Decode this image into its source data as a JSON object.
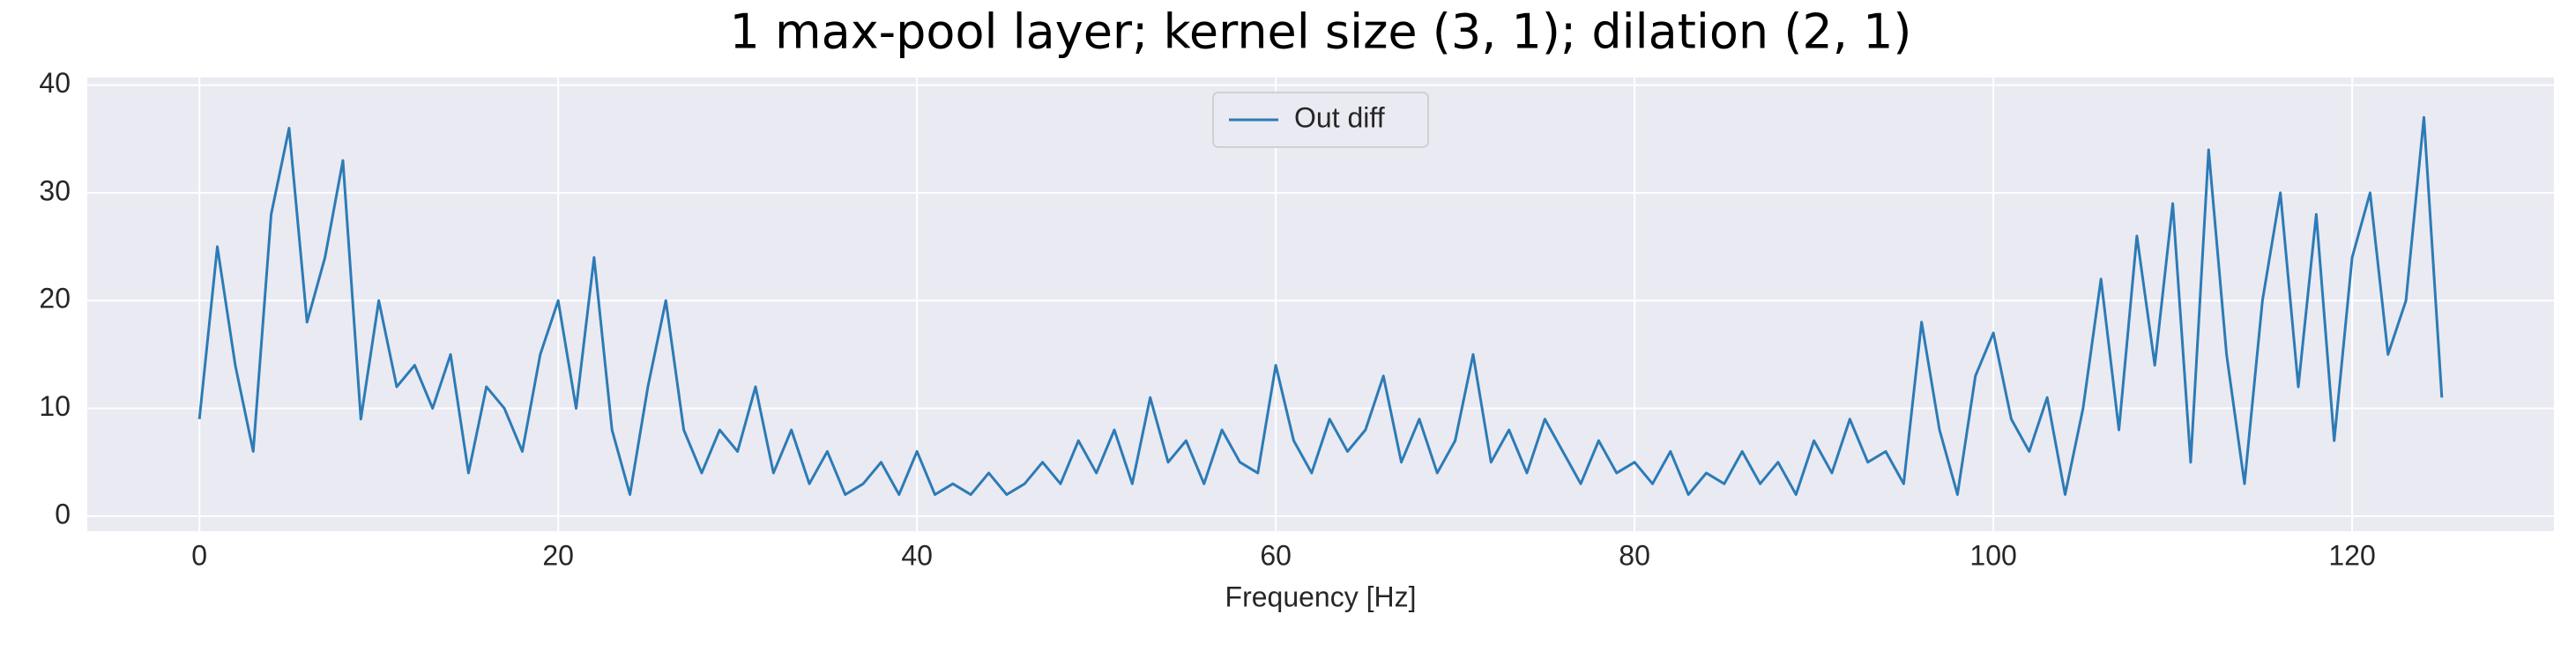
{
  "chart_data": {
    "type": "line",
    "title": "1 max-pool layer; kernel size (3, 1); dilation (2, 1)",
    "x_label": "Frequency [Hz]",
    "x": [
      0,
      1,
      2,
      3,
      4,
      5,
      6,
      7,
      8,
      9,
      10,
      11,
      12,
      13,
      14,
      15,
      16,
      17,
      18,
      19,
      20,
      21,
      22,
      23,
      24,
      25,
      26,
      27,
      28,
      29,
      30,
      31,
      32,
      33,
      34,
      35,
      36,
      37,
      38,
      39,
      40,
      41,
      42,
      43,
      44,
      45,
      46,
      47,
      48,
      49,
      50,
      51,
      52,
      53,
      54,
      55,
      56,
      57,
      58,
      59,
      60,
      61,
      62,
      63,
      64,
      65,
      66,
      67,
      68,
      69,
      70,
      71,
      72,
      73,
      74,
      75,
      76,
      77,
      78,
      79,
      80,
      81,
      82,
      83,
      84,
      85,
      86,
      87,
      88,
      89,
      90,
      91,
      92,
      93,
      94,
      95,
      96,
      97,
      98,
      99,
      100,
      101,
      102,
      103,
      104,
      105,
      106,
      107,
      108,
      109,
      110,
      111,
      112,
      113,
      114,
      115,
      116,
      117,
      118,
      119,
      120,
      121,
      122,
      123,
      124,
      125
    ],
    "series": [
      {
        "name": "Out diff",
        "color": "#2c7bb6",
        "values": [
          9,
          25,
          14,
          6,
          28,
          36,
          18,
          24,
          33,
          9,
          20,
          12,
          14,
          10,
          15,
          4,
          12,
          10,
          6,
          15,
          20,
          10,
          24,
          8,
          2,
          12,
          20,
          8,
          4,
          8,
          6,
          12,
          4,
          8,
          3,
          6,
          2,
          3,
          5,
          2,
          6,
          2,
          3,
          2,
          4,
          2,
          3,
          5,
          3,
          7,
          4,
          8,
          3,
          11,
          5,
          7,
          3,
          8,
          5,
          4,
          14,
          7,
          4,
          9,
          6,
          8,
          13,
          5,
          9,
          4,
          7,
          15,
          5,
          8,
          4,
          9,
          6,
          3,
          7,
          4,
          5,
          3,
          6,
          2,
          4,
          3,
          6,
          3,
          5,
          2,
          7,
          4,
          9,
          5,
          6,
          3,
          18,
          8,
          2,
          13,
          17,
          9,
          6,
          11,
          2,
          10,
          22,
          8,
          26,
          14,
          29,
          5,
          34,
          15,
          3,
          20,
          30,
          12,
          28,
          7,
          24,
          30,
          15,
          20,
          37,
          11
        ]
      }
    ],
    "xlim": [
      -6.25,
      131.25
    ],
    "xticks": [
      0,
      20,
      40,
      60,
      80,
      100,
      120
    ],
    "ylim": [
      -1.4,
      40.7
    ],
    "yticks": [
      0,
      10,
      20,
      30,
      40
    ],
    "grid": true,
    "legend": "upper center"
  }
}
